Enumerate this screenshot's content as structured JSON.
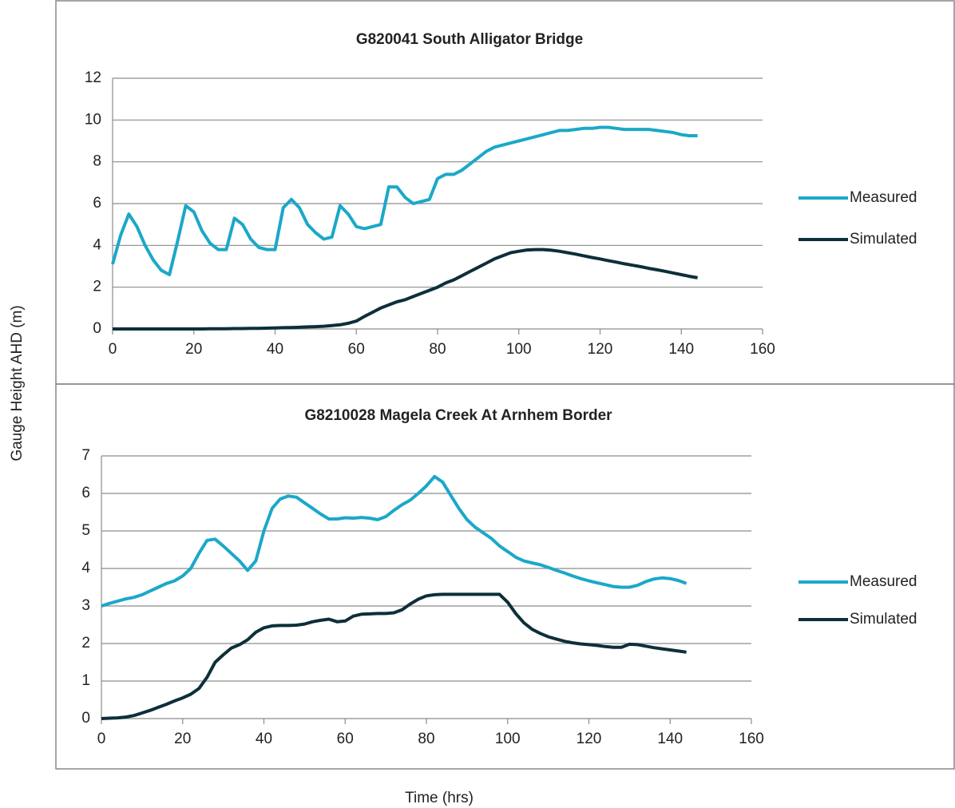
{
  "ylabel": "Gauge Height AHD (m)",
  "xlabel": "Time (hrs)",
  "chart_data": [
    {
      "type": "line",
      "title": "G820041 South Alligator Bridge",
      "x": [
        0,
        2,
        4,
        6,
        8,
        10,
        12,
        14,
        16,
        18,
        20,
        22,
        24,
        26,
        28,
        30,
        32,
        34,
        36,
        38,
        40,
        42,
        44,
        46,
        48,
        50,
        52,
        54,
        56,
        58,
        60,
        62,
        64,
        66,
        68,
        70,
        72,
        74,
        76,
        78,
        80,
        82,
        84,
        86,
        88,
        90,
        92,
        94,
        96,
        98,
        100,
        102,
        104,
        106,
        108,
        110,
        112,
        114,
        116,
        118,
        120,
        122,
        124,
        126,
        128,
        130,
        132,
        134,
        136,
        138,
        140,
        142,
        144
      ],
      "series": [
        {
          "name": "Measured",
          "color": "#1ba8c8",
          "values": [
            3.1,
            4.5,
            5.5,
            4.9,
            4.0,
            3.3,
            2.8,
            2.6,
            4.2,
            5.9,
            5.6,
            4.7,
            4.1,
            3.8,
            3.8,
            5.3,
            5.0,
            4.3,
            3.9,
            3.8,
            3.8,
            5.8,
            6.2,
            5.8,
            5.0,
            4.6,
            4.3,
            4.4,
            5.9,
            5.5,
            4.9,
            4.8,
            4.9,
            5.0,
            6.8,
            6.8,
            6.3,
            6.0,
            6.1,
            6.2,
            7.2,
            7.4,
            7.4,
            7.6,
            7.9,
            8.2,
            8.5,
            8.7,
            8.8,
            8.9,
            9.0,
            9.1,
            9.2,
            9.3,
            9.4,
            9.5,
            9.5,
            9.55,
            9.6,
            9.6,
            9.65,
            9.65,
            9.6,
            9.55,
            9.55,
            9.55,
            9.55,
            9.5,
            9.45,
            9.4,
            9.3,
            9.25,
            9.25
          ]
        },
        {
          "name": "Simulated",
          "color": "#0d2f3a",
          "values": [
            0,
            0,
            0,
            0,
            0,
            0,
            0,
            0,
            0,
            0,
            0,
            0,
            0.01,
            0.01,
            0.01,
            0.02,
            0.02,
            0.03,
            0.03,
            0.04,
            0.05,
            0.06,
            0.07,
            0.08,
            0.1,
            0.11,
            0.13,
            0.16,
            0.2,
            0.27,
            0.38,
            0.6,
            0.8,
            1.0,
            1.15,
            1.3,
            1.4,
            1.55,
            1.7,
            1.85,
            2.0,
            2.2,
            2.35,
            2.55,
            2.75,
            2.95,
            3.15,
            3.35,
            3.5,
            3.65,
            3.72,
            3.78,
            3.8,
            3.8,
            3.77,
            3.72,
            3.65,
            3.58,
            3.5,
            3.42,
            3.35,
            3.27,
            3.2,
            3.12,
            3.05,
            2.98,
            2.9,
            2.83,
            2.76,
            2.68,
            2.6,
            2.52,
            2.45
          ]
        }
      ],
      "xlim": [
        0,
        160
      ],
      "xticks": [
        0,
        20,
        40,
        60,
        80,
        100,
        120,
        140,
        160
      ],
      "ylim": [
        0,
        12
      ],
      "yticks": [
        0,
        2,
        4,
        6,
        8,
        10,
        12
      ],
      "grid": true,
      "legend": "right"
    },
    {
      "type": "line",
      "title": "G8210028 Magela Creek At Arnhem Border",
      "x": [
        0,
        2,
        4,
        6,
        8,
        10,
        12,
        14,
        16,
        18,
        20,
        22,
        24,
        26,
        28,
        30,
        32,
        34,
        36,
        38,
        40,
        42,
        44,
        46,
        48,
        50,
        52,
        54,
        56,
        58,
        60,
        62,
        64,
        66,
        68,
        70,
        72,
        74,
        76,
        78,
        80,
        82,
        84,
        86,
        88,
        90,
        92,
        94,
        96,
        98,
        100,
        102,
        104,
        106,
        108,
        110,
        112,
        114,
        116,
        118,
        120,
        122,
        124,
        126,
        128,
        130,
        132,
        134,
        136,
        138,
        140,
        142,
        144
      ],
      "series": [
        {
          "name": "Measured",
          "color": "#1ba8c8",
          "values": [
            3.0,
            3.07,
            3.13,
            3.19,
            3.23,
            3.3,
            3.4,
            3.5,
            3.6,
            3.67,
            3.8,
            4.0,
            4.4,
            4.75,
            4.78,
            4.6,
            4.4,
            4.2,
            3.95,
            4.2,
            5.0,
            5.6,
            5.85,
            5.93,
            5.9,
            5.75,
            5.6,
            5.45,
            5.32,
            5.32,
            5.35,
            5.34,
            5.36,
            5.34,
            5.3,
            5.38,
            5.55,
            5.7,
            5.82,
            6.0,
            6.2,
            6.45,
            6.3,
            5.95,
            5.6,
            5.3,
            5.1,
            4.95,
            4.8,
            4.6,
            4.45,
            4.3,
            4.2,
            4.15,
            4.1,
            4.03,
            3.95,
            3.88,
            3.8,
            3.73,
            3.67,
            3.62,
            3.57,
            3.52,
            3.5,
            3.5,
            3.55,
            3.65,
            3.72,
            3.75,
            3.73,
            3.68,
            3.6
          ]
        },
        {
          "name": "Simulated",
          "color": "#0d2f3a",
          "values": [
            0,
            0.01,
            0.02,
            0.04,
            0.08,
            0.15,
            0.22,
            0.3,
            0.38,
            0.47,
            0.55,
            0.65,
            0.8,
            1.1,
            1.5,
            1.7,
            1.88,
            1.97,
            2.1,
            2.3,
            2.42,
            2.47,
            2.48,
            2.48,
            2.49,
            2.52,
            2.58,
            2.62,
            2.65,
            2.58,
            2.6,
            2.73,
            2.78,
            2.79,
            2.8,
            2.8,
            2.82,
            2.9,
            3.05,
            3.18,
            3.27,
            3.3,
            3.31,
            3.31,
            3.31,
            3.31,
            3.31,
            3.31,
            3.31,
            3.31,
            3.1,
            2.8,
            2.55,
            2.38,
            2.27,
            2.18,
            2.12,
            2.06,
            2.02,
            1.99,
            1.97,
            1.95,
            1.92,
            1.9,
            1.9,
            1.98,
            1.97,
            1.93,
            1.89,
            1.86,
            1.83,
            1.8,
            1.77
          ]
        }
      ],
      "xlim": [
        0,
        160
      ],
      "xticks": [
        0,
        20,
        40,
        60,
        80,
        100,
        120,
        140,
        160
      ],
      "ylim": [
        0,
        7
      ],
      "yticks": [
        0,
        1,
        2,
        3,
        4,
        5,
        6,
        7
      ],
      "grid": true,
      "legend": "right"
    }
  ]
}
